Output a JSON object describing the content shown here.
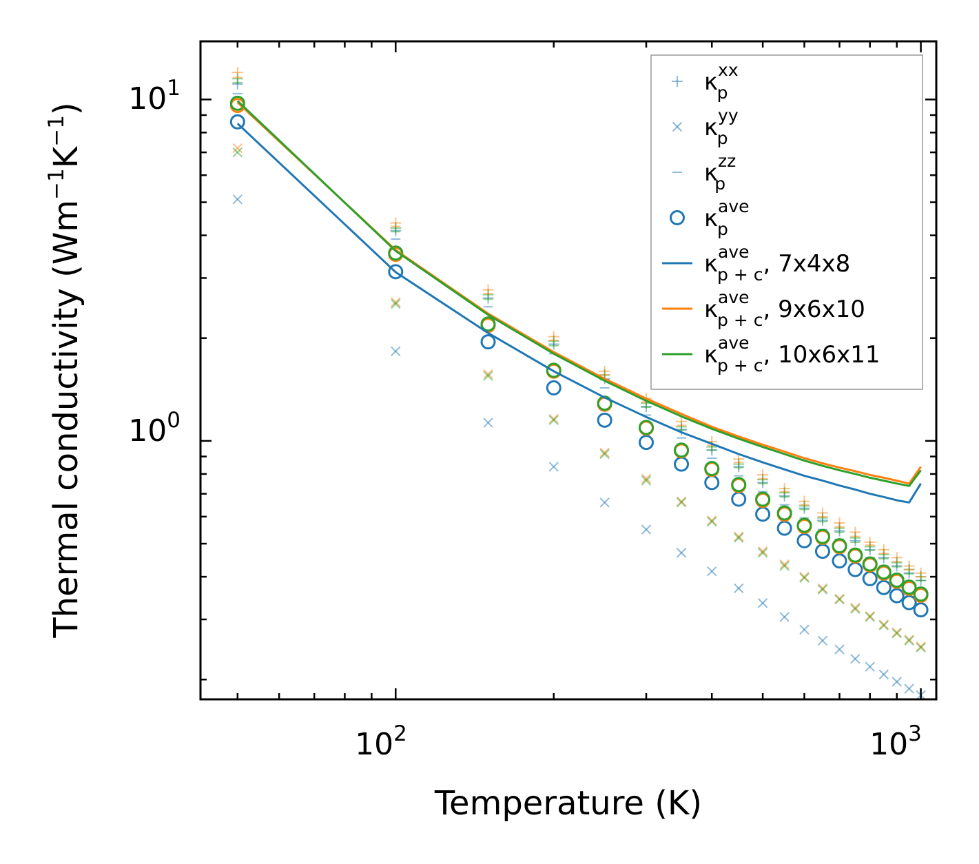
{
  "chart_data": {
    "type": "scatter",
    "xscale": "log",
    "yscale": "log",
    "xlabel": "Temperature (K)",
    "ylabel_parts": {
      "main": "Thermal conductivity (Wm",
      "exp1": "−1",
      "mid": "K",
      "exp2": "−1",
      "close": ")"
    },
    "xlim": [
      42.5,
      1070
    ],
    "ylim": [
      0.175,
      14.8
    ],
    "xticks": [
      {
        "value": 100,
        "base": "10",
        "exp": "2"
      },
      {
        "value": 1000,
        "base": "10",
        "exp": "3"
      }
    ],
    "yticks": [
      {
        "value": 1,
        "base": "10",
        "exp": "0"
      },
      {
        "value": 10,
        "base": "10",
        "exp": "1"
      }
    ],
    "x": [
      50,
      100,
      150,
      200,
      250,
      300,
      350,
      400,
      450,
      500,
      550,
      600,
      650,
      700,
      750,
      800,
      850,
      900,
      950,
      1000
    ],
    "series": [
      {
        "name": "κp_xx 7x4x8",
        "marker": "plus",
        "color": "#1f77b4",
        "alpha": 0.5,
        "values": [
          11.1,
          4.13,
          2.62,
          1.92,
          1.52,
          1.26,
          1.08,
          0.94,
          0.84,
          0.755,
          0.69,
          0.635,
          0.585,
          0.545,
          0.51,
          0.48,
          0.455,
          0.43,
          0.41,
          0.39
        ]
      },
      {
        "name": "κp_xx 9x6x10",
        "marker": "plus",
        "color": "#ff7f0e",
        "alpha": 0.5,
        "values": [
          12.0,
          4.35,
          2.77,
          2.02,
          1.6,
          1.33,
          1.14,
          0.995,
          0.885,
          0.795,
          0.725,
          0.665,
          0.615,
          0.575,
          0.54,
          0.505,
          0.48,
          0.455,
          0.43,
          0.41
        ]
      },
      {
        "name": "κp_xx 10x6x11",
        "marker": "plus",
        "color": "#2ca02c",
        "alpha": 0.5,
        "values": [
          11.5,
          4.2,
          2.68,
          1.96,
          1.56,
          1.29,
          1.1,
          0.96,
          0.855,
          0.77,
          0.705,
          0.645,
          0.595,
          0.555,
          0.52,
          0.49,
          0.465,
          0.44,
          0.42,
          0.4
        ]
      },
      {
        "name": "κp_yy 7x4x8",
        "marker": "x",
        "color": "#1f77b4",
        "alpha": 0.5,
        "values": [
          5.1,
          1.83,
          1.13,
          0.84,
          0.66,
          0.55,
          0.47,
          0.415,
          0.37,
          0.335,
          0.305,
          0.28,
          0.26,
          0.245,
          0.23,
          0.218,
          0.207,
          0.197,
          0.188,
          0.18
        ]
      },
      {
        "name": "κp_yy 9x6x10",
        "marker": "x",
        "color": "#ff7f0e",
        "alpha": 0.5,
        "values": [
          7.2,
          2.55,
          1.57,
          1.16,
          0.925,
          0.775,
          0.665,
          0.585,
          0.525,
          0.475,
          0.435,
          0.4,
          0.37,
          0.345,
          0.325,
          0.307,
          0.29,
          0.275,
          0.262,
          0.25
        ]
      },
      {
        "name": "κp_yy 10x6x11",
        "marker": "x",
        "color": "#2ca02c",
        "alpha": 0.5,
        "values": [
          7.0,
          2.52,
          1.55,
          1.15,
          0.915,
          0.765,
          0.66,
          0.58,
          0.52,
          0.47,
          0.43,
          0.397,
          0.367,
          0.343,
          0.322,
          0.305,
          0.288,
          0.273,
          0.26,
          0.248
        ]
      },
      {
        "name": "κp_zz 7x4x8",
        "marker": "hline",
        "color": "#1f77b4",
        "alpha": 0.5,
        "values": [
          10.4,
          3.9,
          2.47,
          1.8,
          1.43,
          1.19,
          1.02,
          0.89,
          0.79,
          0.71,
          0.65,
          0.595,
          0.55,
          0.515,
          0.48,
          0.455,
          0.43,
          0.405,
          0.385,
          0.37
        ]
      },
      {
        "name": "κp_zz 9x6x10",
        "marker": "hline",
        "color": "#ff7f0e",
        "alpha": 0.5,
        "values": [
          11.6,
          4.25,
          2.7,
          1.97,
          1.56,
          1.3,
          1.11,
          0.97,
          0.865,
          0.775,
          0.71,
          0.65,
          0.6,
          0.56,
          0.525,
          0.495,
          0.468,
          0.443,
          0.42,
          0.4
        ]
      },
      {
        "name": "κp_zz 10x6x11",
        "marker": "hline",
        "color": "#2ca02c",
        "alpha": 0.5,
        "values": [
          11.2,
          4.1,
          2.6,
          1.9,
          1.51,
          1.255,
          1.075,
          0.94,
          0.835,
          0.75,
          0.685,
          0.63,
          0.58,
          0.54,
          0.505,
          0.478,
          0.452,
          0.428,
          0.408,
          0.39
        ]
      },
      {
        "name": "κp_ave 7x4x8",
        "marker": "circle",
        "color": "#1f77b4",
        "alpha": 1,
        "values": [
          8.6,
          3.13,
          1.95,
          1.43,
          1.15,
          0.99,
          0.855,
          0.755,
          0.675,
          0.61,
          0.555,
          0.51,
          0.475,
          0.445,
          0.42,
          0.395,
          0.372,
          0.352,
          0.336,
          0.32
        ]
      },
      {
        "name": "κp_ave 9x6x10",
        "marker": "circle",
        "color": "#ff7f0e",
        "alpha": 1,
        "values": [
          9.6,
          3.52,
          2.18,
          1.6,
          1.28,
          1.09,
          0.935,
          0.825,
          0.74,
          0.67,
          0.61,
          0.562,
          0.522,
          0.49,
          0.46,
          0.433,
          0.41,
          0.388,
          0.37,
          0.353
        ]
      },
      {
        "name": "κp_ave 10x6x11",
        "marker": "circle",
        "color": "#2ca02c",
        "alpha": 1,
        "values": [
          9.75,
          3.55,
          2.2,
          1.61,
          1.29,
          1.095,
          0.94,
          0.83,
          0.745,
          0.675,
          0.615,
          0.566,
          0.525,
          0.493,
          0.463,
          0.436,
          0.413,
          0.391,
          0.373,
          0.356
        ]
      },
      {
        "name": "κp+c_ave 7x4x8",
        "marker": "line",
        "color": "#1f77b4",
        "alpha": 1,
        "values": [
          8.5,
          3.12,
          2.07,
          1.6,
          1.34,
          1.175,
          1.06,
          0.98,
          0.915,
          0.865,
          0.825,
          0.79,
          0.765,
          0.74,
          0.72,
          0.7,
          0.685,
          0.67,
          0.66,
          0.75
        ]
      },
      {
        "name": "κp+c_ave 9x6x10",
        "marker": "line",
        "color": "#ff7f0e",
        "alpha": 1,
        "values": [
          9.8,
          3.62,
          2.36,
          1.82,
          1.52,
          1.33,
          1.2,
          1.1,
          1.03,
          0.975,
          0.93,
          0.89,
          0.86,
          0.835,
          0.815,
          0.795,
          0.78,
          0.765,
          0.75,
          0.84
        ]
      },
      {
        "name": "κp+c_ave 10x6x11",
        "marker": "line",
        "color": "#2ca02c",
        "alpha": 1,
        "values": [
          9.9,
          3.6,
          2.34,
          1.8,
          1.5,
          1.31,
          1.18,
          1.085,
          1.015,
          0.96,
          0.915,
          0.875,
          0.845,
          0.82,
          0.8,
          0.78,
          0.765,
          0.75,
          0.738,
          0.82
        ]
      }
    ],
    "legend": {
      "position": "upper-right",
      "entries": [
        {
          "symbol": "κ",
          "sub": "p",
          "sup": "xx",
          "tail": "",
          "marker": "plus",
          "color": "#1f77b4",
          "alpha": 0.5
        },
        {
          "symbol": "κ",
          "sub": "p",
          "sup": "yy",
          "tail": "",
          "marker": "x",
          "color": "#1f77b4",
          "alpha": 0.5
        },
        {
          "symbol": "κ",
          "sub": "p",
          "sup": "zz",
          "tail": "",
          "marker": "hline",
          "color": "#1f77b4",
          "alpha": 0.5
        },
        {
          "symbol": "κ",
          "sub": "p",
          "sup": "ave",
          "tail": "",
          "marker": "circle",
          "color": "#1f77b4",
          "alpha": 1
        },
        {
          "symbol": "κ",
          "sub": "p + c",
          "sup": "ave",
          "tail": ", 7x4x8",
          "marker": "line",
          "color": "#1f77b4",
          "alpha": 1
        },
        {
          "symbol": "κ",
          "sub": "p + c",
          "sup": "ave",
          "tail": ", 9x6x10",
          "marker": "line",
          "color": "#ff7f0e",
          "alpha": 1
        },
        {
          "symbol": "κ",
          "sub": "p + c",
          "sup": "ave",
          "tail": ", 10x6x11",
          "marker": "line",
          "color": "#2ca02c",
          "alpha": 1
        }
      ]
    }
  }
}
